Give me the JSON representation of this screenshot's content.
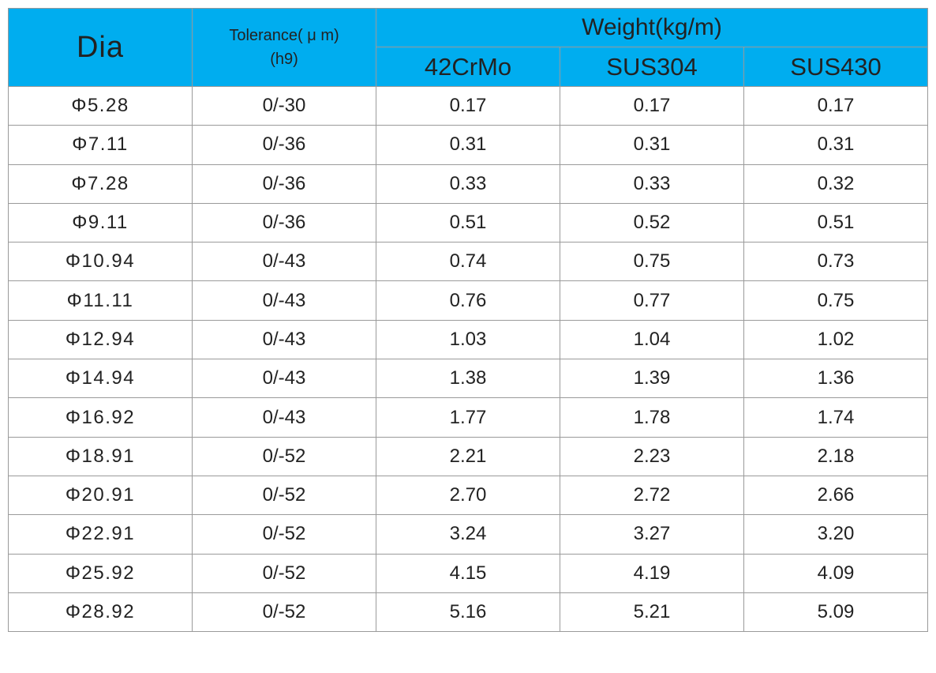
{
  "header": {
    "dia": "Dia",
    "tolerance_line1": "Tolerance( μ m)",
    "tolerance_line2": "(h9)",
    "weight": "Weight(kg/m)",
    "materials": [
      "42CrMo",
      "SUS304",
      "SUS430"
    ]
  },
  "colors": {
    "header_bg": "#00adef",
    "border": "#9a9a9a"
  },
  "rows": [
    {
      "dia": "Φ5.28",
      "tol": "0/-30",
      "w": [
        "0.17",
        "0.17",
        "0.17"
      ]
    },
    {
      "dia": "Φ7.11",
      "tol": "0/-36",
      "w": [
        "0.31",
        "0.31",
        "0.31"
      ]
    },
    {
      "dia": "Φ7.28",
      "tol": "0/-36",
      "w": [
        "0.33",
        "0.33",
        "0.32"
      ]
    },
    {
      "dia": "Φ9.11",
      "tol": "0/-36",
      "w": [
        "0.51",
        "0.52",
        "0.51"
      ]
    },
    {
      "dia": "Φ10.94",
      "tol": "0/-43",
      "w": [
        "0.74",
        "0.75",
        "0.73"
      ]
    },
    {
      "dia": "Φ11.11",
      "tol": "0/-43",
      "w": [
        "0.76",
        "0.77",
        "0.75"
      ]
    },
    {
      "dia": "Φ12.94",
      "tol": "0/-43",
      "w": [
        "1.03",
        "1.04",
        "1.02"
      ]
    },
    {
      "dia": "Φ14.94",
      "tol": "0/-43",
      "w": [
        "1.38",
        "1.39",
        "1.36"
      ]
    },
    {
      "dia": "Φ16.92",
      "tol": "0/-43",
      "w": [
        "1.77",
        "1.78",
        "1.74"
      ]
    },
    {
      "dia": "Φ18.91",
      "tol": "0/-52",
      "w": [
        "2.21",
        "2.23",
        "2.18"
      ]
    },
    {
      "dia": "Φ20.91",
      "tol": "0/-52",
      "w": [
        "2.70",
        "2.72",
        "2.66"
      ]
    },
    {
      "dia": "Φ22.91",
      "tol": "0/-52",
      "w": [
        "3.24",
        "3.27",
        "3.20"
      ]
    },
    {
      "dia": "Φ25.92",
      "tol": "0/-52",
      "w": [
        "4.15",
        "4.19",
        "4.09"
      ]
    },
    {
      "dia": "Φ28.92",
      "tol": "0/-52",
      "w": [
        "5.16",
        "5.21",
        "5.09"
      ]
    }
  ]
}
